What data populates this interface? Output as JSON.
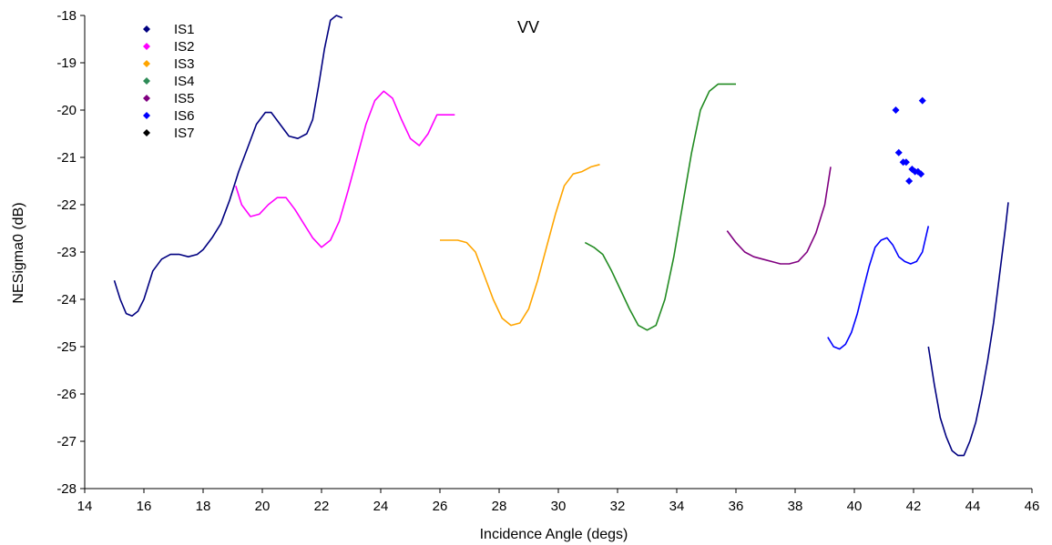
{
  "chart_data": {
    "type": "line",
    "title": "VV",
    "xlabel": "Incidence Angle (degs)",
    "ylabel": "NESigma0 (dB)",
    "xlim": [
      14,
      46
    ],
    "ylim": [
      -28,
      -18
    ],
    "xticks": [
      "14",
      "16",
      "18",
      "20",
      "22",
      "24",
      "26",
      "28",
      "30",
      "32",
      "34",
      "36",
      "38",
      "40",
      "42",
      "44",
      "46"
    ],
    "yticks": [
      "-18",
      "-19",
      "-20",
      "-21",
      "-22",
      "-23",
      "-24",
      "-25",
      "-26",
      "-27",
      "-28"
    ],
    "grid": false,
    "legend_position": "top-left",
    "legend": [
      {
        "name": "IS1",
        "color": "#000080"
      },
      {
        "name": "IS2",
        "color": "#ff00ff"
      },
      {
        "name": "IS3",
        "color": "#ffa500"
      },
      {
        "name": "IS4",
        "color": "#2e8b57"
      },
      {
        "name": "IS5",
        "color": "#800080"
      },
      {
        "name": "IS6",
        "color": "#0000ff"
      },
      {
        "name": "IS7",
        "color": "#000000"
      }
    ],
    "series": [
      {
        "color": "#000080",
        "style": "line",
        "x": [
          15.0,
          15.2,
          15.4,
          15.6,
          15.8,
          16.0,
          16.3,
          16.6,
          16.9,
          17.2,
          17.5,
          17.8,
          18.0,
          18.3,
          18.6,
          18.9,
          19.2,
          19.5,
          19.8,
          20.1,
          20.3,
          20.6,
          20.9,
          21.2,
          21.5,
          21.7,
          21.9,
          22.1,
          22.3,
          22.5,
          22.7
        ],
        "y": [
          -23.6,
          -24.0,
          -24.3,
          -24.35,
          -24.25,
          -24.0,
          -23.4,
          -23.15,
          -23.05,
          -23.05,
          -23.1,
          -23.05,
          -22.95,
          -22.7,
          -22.4,
          -21.9,
          -21.3,
          -20.8,
          -20.3,
          -20.05,
          -20.05,
          -20.3,
          -20.55,
          -20.6,
          -20.5,
          -20.2,
          -19.5,
          -18.7,
          -18.1,
          -18.0,
          -18.05
        ]
      },
      {
        "color": "#ff00ff",
        "style": "line",
        "x": [
          19.1,
          19.3,
          19.6,
          19.9,
          20.2,
          20.5,
          20.8,
          21.1,
          21.4,
          21.7,
          22.0,
          22.3,
          22.6,
          22.9,
          23.2,
          23.5,
          23.8,
          24.1,
          24.4,
          24.7,
          25.0,
          25.3,
          25.6,
          25.9,
          26.2,
          26.5
        ],
        "y": [
          -21.6,
          -22.0,
          -22.25,
          -22.2,
          -22.0,
          -21.85,
          -21.85,
          -22.1,
          -22.4,
          -22.7,
          -22.9,
          -22.75,
          -22.35,
          -21.7,
          -21.0,
          -20.3,
          -19.8,
          -19.6,
          -19.75,
          -20.2,
          -20.6,
          -20.75,
          -20.5,
          -20.1,
          -20.1,
          -20.1
        ]
      },
      {
        "color": "#ffa500",
        "style": "line",
        "x": [
          26.0,
          26.3,
          26.6,
          26.9,
          27.2,
          27.5,
          27.8,
          28.1,
          28.4,
          28.7,
          29.0,
          29.3,
          29.6,
          29.9,
          30.2,
          30.5,
          30.8,
          31.1,
          31.4
        ],
        "y": [
          -22.75,
          -22.75,
          -22.75,
          -22.8,
          -23.0,
          -23.5,
          -24.0,
          -24.4,
          -24.55,
          -24.5,
          -24.2,
          -23.6,
          -22.9,
          -22.2,
          -21.6,
          -21.35,
          -21.3,
          -21.2,
          -21.15
        ]
      },
      {
        "color": "#228b22",
        "style": "line",
        "x": [
          30.9,
          31.2,
          31.5,
          31.8,
          32.1,
          32.4,
          32.7,
          33.0,
          33.3,
          33.6,
          33.9,
          34.2,
          34.5,
          34.8,
          35.1,
          35.4,
          35.7,
          36.0
        ],
        "y": [
          -22.8,
          -22.9,
          -23.05,
          -23.4,
          -23.8,
          -24.2,
          -24.55,
          -24.65,
          -24.55,
          -24.0,
          -23.1,
          -22.0,
          -20.9,
          -20.0,
          -19.6,
          -19.45,
          -19.45,
          -19.45
        ]
      },
      {
        "color": "#800080",
        "style": "line",
        "x": [
          35.7,
          36.0,
          36.3,
          36.6,
          36.9,
          37.2,
          37.5,
          37.8,
          38.1,
          38.4,
          38.7,
          39.0,
          39.2
        ],
        "y": [
          -22.55,
          -22.8,
          -23.0,
          -23.1,
          -23.15,
          -23.2,
          -23.25,
          -23.25,
          -23.2,
          -23.0,
          -22.6,
          -22.0,
          -21.2
        ]
      },
      {
        "color": "#0000ff",
        "style": "line",
        "x": [
          39.1,
          39.3,
          39.5,
          39.7,
          39.9,
          40.1,
          40.3,
          40.5,
          40.7,
          40.9,
          41.1,
          41.3,
          41.5,
          41.7,
          41.9,
          42.1,
          42.3,
          42.5
        ],
        "y": [
          -24.8,
          -25.0,
          -25.05,
          -24.95,
          -24.7,
          -24.3,
          -23.8,
          -23.3,
          -22.9,
          -22.75,
          -22.7,
          -22.85,
          -23.1,
          -23.2,
          -23.25,
          -23.2,
          -23.0,
          -22.45
        ]
      },
      {
        "color": "#000080",
        "style": "line",
        "x": [
          42.5,
          42.7,
          42.9,
          43.1,
          43.3,
          43.5,
          43.7,
          43.9,
          44.1,
          44.3,
          44.5,
          44.7,
          44.9,
          45.1,
          45.2
        ],
        "y": [
          -25.0,
          -25.8,
          -26.5,
          -26.9,
          -27.2,
          -27.3,
          -27.3,
          -27.0,
          -26.6,
          -26.0,
          -25.3,
          -24.5,
          -23.5,
          -22.5,
          -21.95
        ]
      },
      {
        "color": "#0000ff",
        "style": "markers",
        "x": [
          41.4,
          41.5,
          41.65,
          41.75,
          41.85,
          41.95,
          42.05,
          42.15,
          42.25,
          42.3
        ],
        "y": [
          -20.0,
          -20.9,
          -21.1,
          -21.1,
          -21.5,
          -21.25,
          -21.3,
          -21.3,
          -21.35,
          -19.8
        ]
      }
    ]
  }
}
